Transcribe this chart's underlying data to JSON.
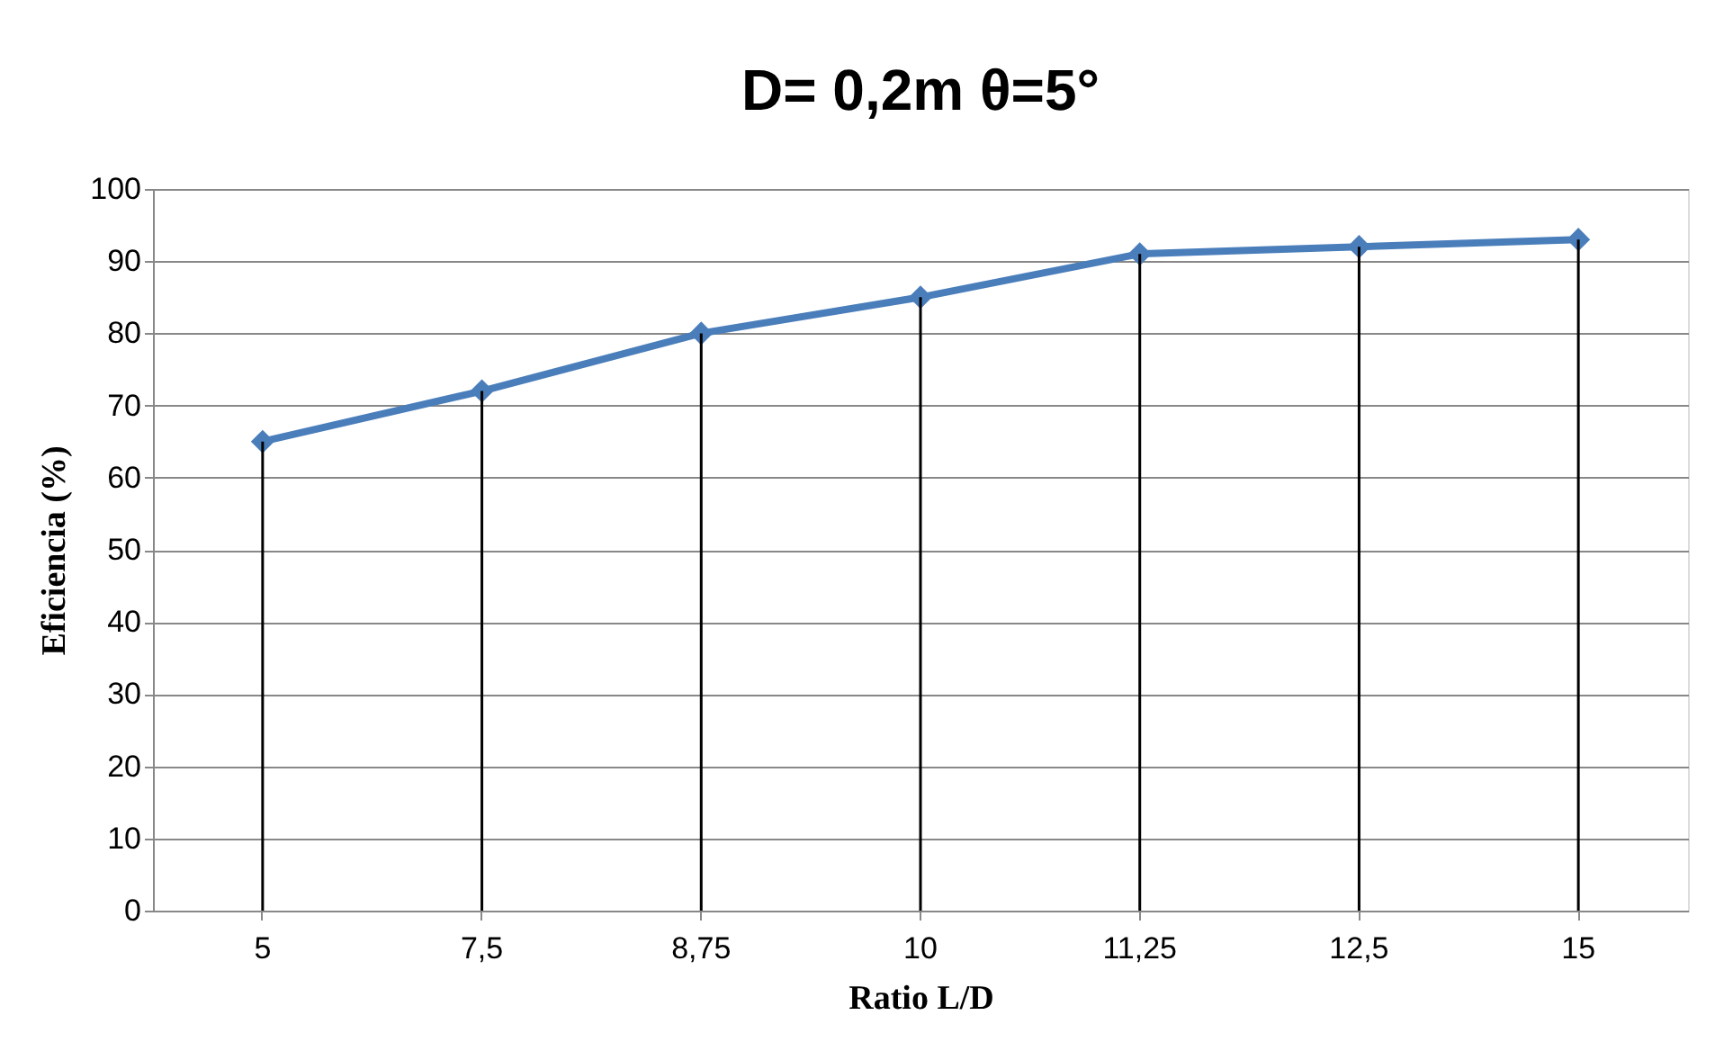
{
  "chart_data": {
    "type": "line",
    "title": "D= 0,2m    θ=5°",
    "xlabel": "Ratio L/D",
    "ylabel": "Eficiencia (%)",
    "categories": [
      "5",
      "7,5",
      "8,75",
      "10",
      "11,25",
      "12,5",
      "15"
    ],
    "series": [
      {
        "color": "#4a7ebb",
        "values": [
          65,
          72,
          80,
          85,
          91,
          92,
          93
        ]
      },
      {
        "type": "bar",
        "color": "#000000",
        "values": [
          65,
          72,
          80,
          85,
          91,
          92,
          93
        ]
      }
    ],
    "ylim": [
      0,
      100
    ],
    "yticks": [
      0,
      10,
      20,
      30,
      40,
      50,
      60,
      70,
      80,
      90,
      100
    ],
    "grid": "y",
    "marker": "diamond",
    "line_style": "solid"
  }
}
